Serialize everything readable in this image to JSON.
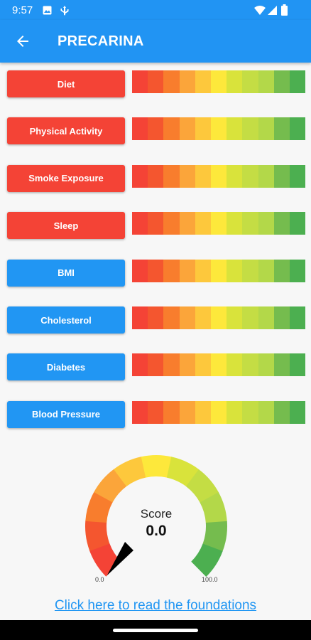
{
  "status_bar": {
    "time": "9:57",
    "left_icons": [
      "photo-notification-icon",
      "usb-notification-icon"
    ],
    "right_icons": [
      "wifi-icon",
      "cell-signal-icon",
      "battery-icon"
    ]
  },
  "app_bar": {
    "title": "PRECARINA",
    "back_icon": "back-arrow-icon"
  },
  "colors": {
    "app_bar": "#2194f3",
    "red_button": "#f44336",
    "blue_button": "#2196f3",
    "scale": [
      "#f44336",
      "#f4562f",
      "#f87d2d",
      "#fba53a",
      "#fdc83c",
      "#fde83b",
      "#d9e33b",
      "#c4dd44",
      "#b3d849",
      "#75bc4e",
      "#4caf50"
    ]
  },
  "factors": [
    {
      "label": "Diet",
      "color": "red"
    },
    {
      "label": "Physical Activity",
      "color": "red"
    },
    {
      "label": "Smoke Exposure",
      "color": "red"
    },
    {
      "label": "Sleep",
      "color": "red"
    },
    {
      "label": "BMI",
      "color": "blue"
    },
    {
      "label": "Cholesterol",
      "color": "blue"
    },
    {
      "label": "Diabetes",
      "color": "blue"
    },
    {
      "label": "Blood Pressure",
      "color": "blue"
    }
  ],
  "gauge": {
    "label": "Score",
    "value": "0.0",
    "value_numeric": 0,
    "min": "0.0",
    "max": "100.0"
  },
  "link_text": "Click here to read the foundations"
}
